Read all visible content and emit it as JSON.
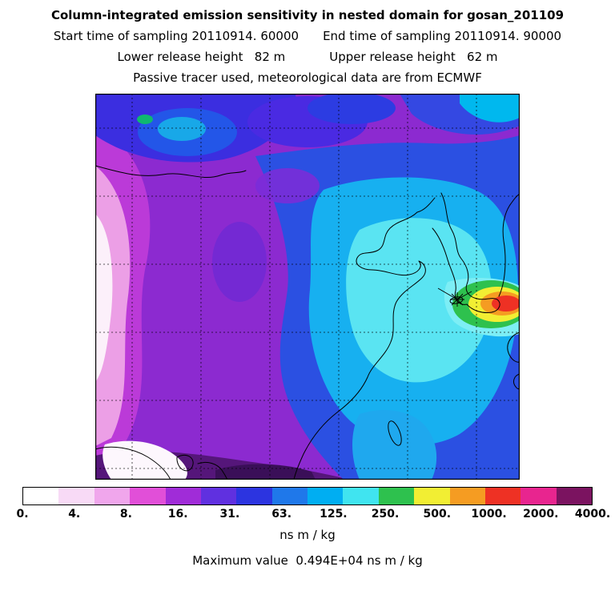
{
  "header": {
    "title": "Column-integrated emission sensitivity in nested domain for gosan_201109",
    "start_time": "Start time of sampling 20110914. 60000",
    "end_time": "End time of sampling 20110914. 90000",
    "lower_release": "Lower release height   82 m",
    "upper_release": "Upper release height   62 m",
    "tracer_line": "Passive tracer used, meteorological data are from ECMWF"
  },
  "chart_data": {
    "type": "heatmap",
    "subtype": "filled-contour footprint emission sensitivity map (East Asia nested domain)",
    "title": "Column-integrated emission sensitivity in nested domain for gosan_201109",
    "units": "ns m / kg",
    "levels": [
      0,
      4,
      8,
      16,
      31,
      63,
      125,
      250,
      500,
      1000,
      2000,
      4000
    ],
    "colorbar": {
      "ticks": [
        "0.",
        "4.",
        "8.",
        "16.",
        "31.",
        "63.",
        "125.",
        "250.",
        "500.",
        "1000.",
        "2000.",
        "4000."
      ],
      "colors": [
        "#ffffff",
        "#f8daf6",
        "#f0a6ec",
        "#e14fd8",
        "#a02cd8",
        "#6030e0",
        "#2c34e0",
        "#1f78ea",
        "#00aef2",
        "#40e4f0",
        "#2ec14e",
        "#f2ee33",
        "#f59c22",
        "#ee3124",
        "#e8258f",
        "#7b1360"
      ],
      "units": "ns m / kg"
    },
    "max_value": {
      "text": "Maximum value  0.494E+04 ns m / kg",
      "label": "Maximum value",
      "value": "0.494E+04",
      "value_numeric": 4940,
      "units": "ns m / kg"
    },
    "receptor": {
      "name": "gosan",
      "marker": "star/asterisk",
      "position_frac": {
        "x": 0.85,
        "y": 0.53
      }
    },
    "grid": {
      "style": "dashed black",
      "n_vertical": 6,
      "n_horizontal": 6
    },
    "regions": [
      {
        "area": "far west edge",
        "sensitivity_ns_m_kg": "0-4 (near white)"
      },
      {
        "area": "west / northwest band",
        "sensitivity_ns_m_kg": "4-16 (pink-magenta-purple)"
      },
      {
        "area": "north and center",
        "sensitivity_ns_m_kg": "16-31 (indigo/blue)"
      },
      {
        "area": "Yellow Sea / eastern China / Korea",
        "sensitivity_ns_m_kg": "31-125 (cyan)"
      },
      {
        "area": "around receptor near Jeju (Gosan), extending to right edge",
        "sensitivity_ns_m_kg": "250-4000 (green-yellow-orange-red hotspot)"
      },
      {
        "area": "southwest corner",
        "sensitivity_ns_m_kg": "0-4 patches with 1000-4000 dark streaks"
      }
    ]
  }
}
